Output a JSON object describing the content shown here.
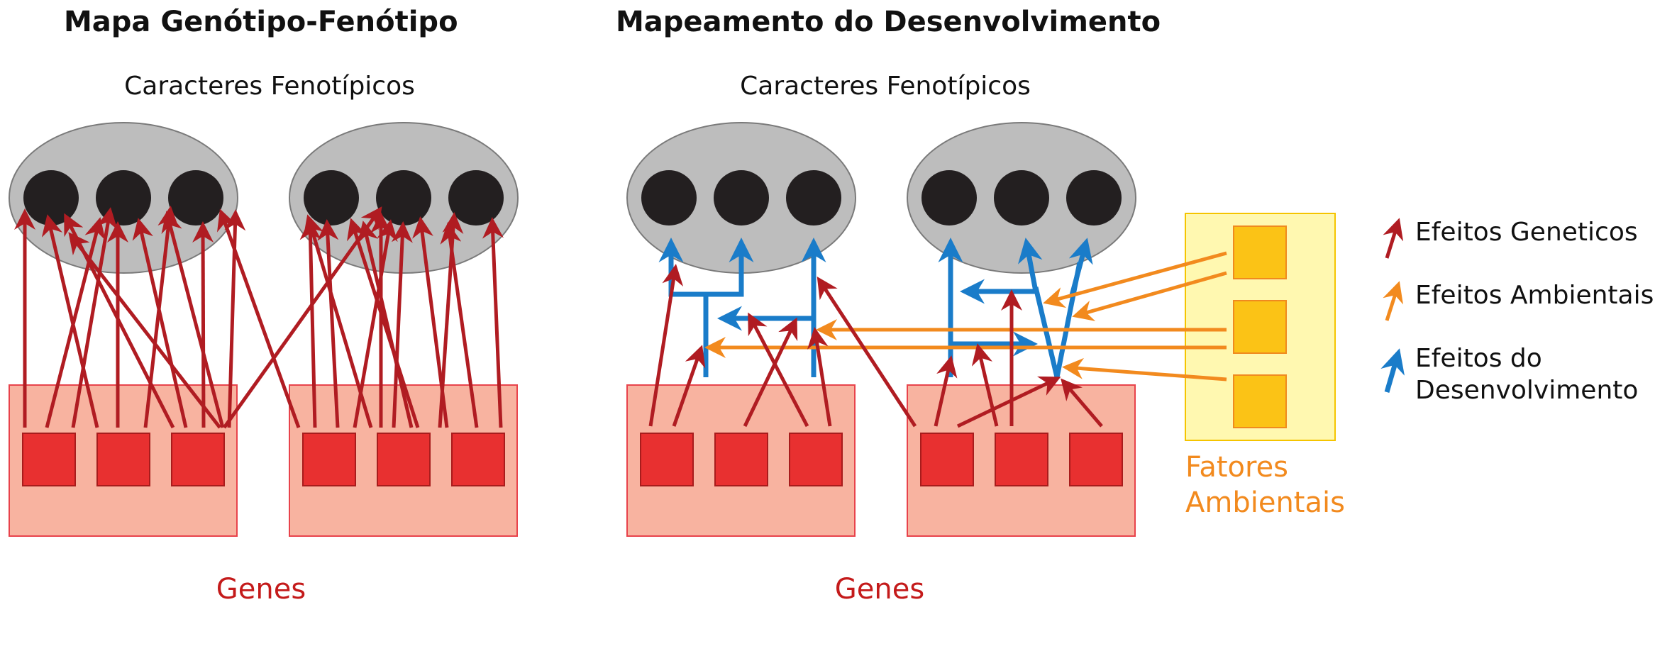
{
  "colors": {
    "genetic": "#b01c22",
    "environmental": "#f28a1e",
    "developmental": "#1a7cc9",
    "gene_box_fill": "#f8b3a0",
    "gene_box_stroke": "#e8434b",
    "gene_fill": "#e83030",
    "gene_stroke": "#a81c1c",
    "trait_group_fill": "#bdbdbd",
    "trait_group_stroke": "#7a7a7a",
    "trait_fill": "#231f20",
    "env_panel_fill": "#fff8b0",
    "env_panel_stroke": "#f5c400",
    "env_factor_fill": "#fbc316",
    "env_factor_stroke": "#f08a1e",
    "genes_label": "#c41a1a",
    "env_label": "#f28a1e"
  },
  "left_panel": {
    "title": "Mapa Genótipo-Fenótipo",
    "traits_label": "Caracteres Fenotípicos",
    "genes_label": "Genes"
  },
  "right_panel": {
    "title": "Mapeamento do Desenvolvimento",
    "traits_label": "Caracteres Fenotípicos",
    "genes_label": "Genes",
    "env_label_line1": "Fatores",
    "env_label_line2": "Ambientais"
  },
  "legend": {
    "genetic_label": "Efeitos Geneticos",
    "environmental_label": "Efeitos Ambientais",
    "developmental_label_line1": "Efeitos do",
    "developmental_label_line2": "Desenvolvimento"
  }
}
